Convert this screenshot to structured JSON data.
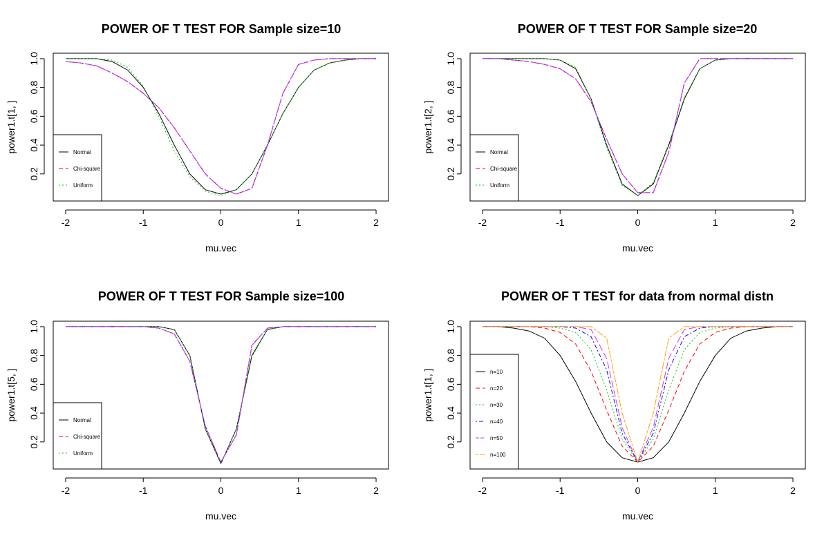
{
  "chart_data": [
    {
      "type": "line",
      "title": "POWER OF T TEST FOR Sample size=10",
      "xlabel": "mu.vec",
      "ylabel": "power1.t[1, ]",
      "xlim": [
        -2,
        2
      ],
      "ylim": [
        0.05,
        1.0
      ],
      "xticks": [
        "-2",
        "-1",
        "0",
        "1",
        "2"
      ],
      "yticks": [
        "0.2",
        "0.4",
        "0.6",
        "0.8",
        "1.0"
      ],
      "legend_position": "bottom-left",
      "x": [
        -2.0,
        -1.8,
        -1.6,
        -1.4,
        -1.2,
        -1.0,
        -0.8,
        -0.6,
        -0.4,
        -0.2,
        0.0,
        0.2,
        0.4,
        0.6,
        0.8,
        1.0,
        1.2,
        1.4,
        1.6,
        1.8,
        2.0
      ],
      "series": [
        {
          "name": "Normal",
          "color": "#000000",
          "dash": "solid",
          "values": [
            1.0,
            1.0,
            1.0,
            0.98,
            0.92,
            0.8,
            0.62,
            0.4,
            0.2,
            0.09,
            0.06,
            0.09,
            0.2,
            0.4,
            0.62,
            0.8,
            0.92,
            0.97,
            0.99,
            1.0,
            1.0
          ]
        },
        {
          "name": "Chi-square",
          "color": "#ff0000",
          "dash": "dashed",
          "values": [
            0.98,
            0.97,
            0.95,
            0.9,
            0.84,
            0.76,
            0.66,
            0.52,
            0.36,
            0.2,
            0.1,
            0.06,
            0.1,
            0.4,
            0.76,
            0.96,
            0.99,
            1.0,
            1.0,
            1.0,
            1.0
          ]
        },
        {
          "name": "Uniform",
          "color": "#00cc00",
          "dash": "dotted",
          "values": [
            1.0,
            1.0,
            1.0,
            0.99,
            0.94,
            0.81,
            0.6,
            0.36,
            0.18,
            0.08,
            0.05,
            0.09,
            0.2,
            0.4,
            0.62,
            0.8,
            0.92,
            0.97,
            0.99,
            1.0,
            1.0
          ]
        },
        {
          "color": "#0000ff",
          "dash": "dotdash",
          "values": [
            0.98,
            0.97,
            0.95,
            0.9,
            0.84,
            0.76,
            0.66,
            0.52,
            0.36,
            0.2,
            0.1,
            0.06,
            0.1,
            0.4,
            0.76,
            0.96,
            0.99,
            1.0,
            1.0,
            1.0,
            1.0
          ]
        },
        {
          "color": "#cc33ff",
          "dash": "longdash",
          "values": [
            0.98,
            0.97,
            0.95,
            0.9,
            0.84,
            0.76,
            0.66,
            0.52,
            0.36,
            0.2,
            0.1,
            0.06,
            0.1,
            0.4,
            0.76,
            0.96,
            0.99,
            1.0,
            1.0,
            1.0,
            1.0
          ]
        }
      ]
    },
    {
      "type": "line",
      "title": "POWER OF T TEST FOR Sample size=20",
      "xlabel": "mu.vec",
      "ylabel": "power1.t[2, ]",
      "xlim": [
        -2,
        2
      ],
      "ylim": [
        0.05,
        1.0
      ],
      "xticks": [
        "-2",
        "-1",
        "0",
        "1",
        "2"
      ],
      "yticks": [
        "0.2",
        "0.4",
        "0.6",
        "0.8",
        "1.0"
      ],
      "legend_position": "bottom-left",
      "x": [
        -2.0,
        -1.8,
        -1.6,
        -1.4,
        -1.2,
        -1.0,
        -0.8,
        -0.6,
        -0.4,
        -0.2,
        0.0,
        0.2,
        0.4,
        0.6,
        0.8,
        1.0,
        1.2,
        1.4,
        1.6,
        1.8,
        2.0
      ],
      "series": [
        {
          "name": "Normal",
          "color": "#000000",
          "dash": "solid",
          "values": [
            1.0,
            1.0,
            1.0,
            1.0,
            1.0,
            0.99,
            0.93,
            0.72,
            0.4,
            0.13,
            0.05,
            0.13,
            0.4,
            0.72,
            0.93,
            0.99,
            1.0,
            1.0,
            1.0,
            1.0,
            1.0
          ]
        },
        {
          "name": "Chi-square",
          "color": "#ff0000",
          "dash": "dashed",
          "values": [
            1.0,
            1.0,
            0.99,
            0.98,
            0.96,
            0.93,
            0.86,
            0.7,
            0.44,
            0.2,
            0.07,
            0.07,
            0.35,
            0.83,
            1.0,
            1.0,
            1.0,
            1.0,
            1.0,
            1.0,
            1.0
          ]
        },
        {
          "name": "Uniform",
          "color": "#00cc00",
          "dash": "dotted",
          "values": [
            1.0,
            1.0,
            1.0,
            1.0,
            1.0,
            0.99,
            0.94,
            0.72,
            0.38,
            0.12,
            0.05,
            0.14,
            0.41,
            0.73,
            0.93,
            0.99,
            1.0,
            1.0,
            1.0,
            1.0,
            1.0
          ]
        },
        {
          "color": "#0000ff",
          "dash": "dotdash",
          "values": [
            1.0,
            1.0,
            0.99,
            0.98,
            0.96,
            0.93,
            0.86,
            0.7,
            0.44,
            0.2,
            0.07,
            0.07,
            0.35,
            0.83,
            1.0,
            1.0,
            1.0,
            1.0,
            1.0,
            1.0,
            1.0
          ]
        },
        {
          "color": "#cc33ff",
          "dash": "longdash",
          "values": [
            1.0,
            1.0,
            0.99,
            0.98,
            0.96,
            0.93,
            0.86,
            0.7,
            0.44,
            0.2,
            0.07,
            0.07,
            0.35,
            0.83,
            1.0,
            1.0,
            1.0,
            1.0,
            1.0,
            1.0,
            1.0
          ]
        }
      ]
    },
    {
      "type": "line",
      "title": "POWER OF T TEST FOR Sample size=100",
      "xlabel": "mu.vec",
      "ylabel": "power1.t[5, ]",
      "xlim": [
        -2,
        2
      ],
      "ylim": [
        0.05,
        1.0
      ],
      "xticks": [
        "-2",
        "-1",
        "0",
        "1",
        "2"
      ],
      "yticks": [
        "0.2",
        "0.4",
        "0.6",
        "0.8",
        "1.0"
      ],
      "legend_position": "bottom-left",
      "x": [
        -2.0,
        -1.8,
        -1.6,
        -1.4,
        -1.2,
        -1.0,
        -0.8,
        -0.6,
        -0.4,
        -0.2,
        0.0,
        0.2,
        0.4,
        0.6,
        0.8,
        1.0,
        1.2,
        1.4,
        1.6,
        1.8,
        2.0
      ],
      "series": [
        {
          "name": "Normal",
          "color": "#000000",
          "dash": "solid",
          "values": [
            1.0,
            1.0,
            1.0,
            1.0,
            1.0,
            1.0,
            1.0,
            0.98,
            0.8,
            0.29,
            0.05,
            0.29,
            0.8,
            0.98,
            1.0,
            1.0,
            1.0,
            1.0,
            1.0,
            1.0,
            1.0
          ]
        },
        {
          "name": "Chi-square",
          "color": "#ff0000",
          "dash": "dashed",
          "values": [
            1.0,
            1.0,
            1.0,
            1.0,
            1.0,
            1.0,
            0.99,
            0.95,
            0.76,
            0.31,
            0.06,
            0.25,
            0.87,
            0.99,
            1.0,
            1.0,
            1.0,
            1.0,
            1.0,
            1.0,
            1.0
          ]
        },
        {
          "name": "Uniform",
          "color": "#00cc00",
          "dash": "dotted",
          "values": [
            1.0,
            1.0,
            1.0,
            1.0,
            1.0,
            1.0,
            1.0,
            0.98,
            0.8,
            0.29,
            0.05,
            0.29,
            0.79,
            0.98,
            1.0,
            1.0,
            1.0,
            1.0,
            1.0,
            1.0,
            1.0
          ]
        },
        {
          "color": "#0000ff",
          "dash": "dotdash",
          "values": [
            1.0,
            1.0,
            1.0,
            1.0,
            1.0,
            1.0,
            0.99,
            0.95,
            0.76,
            0.31,
            0.06,
            0.25,
            0.87,
            0.99,
            1.0,
            1.0,
            1.0,
            1.0,
            1.0,
            1.0,
            1.0
          ]
        },
        {
          "color": "#cc33ff",
          "dash": "longdash",
          "values": [
            1.0,
            1.0,
            1.0,
            1.0,
            1.0,
            1.0,
            0.99,
            0.95,
            0.76,
            0.31,
            0.06,
            0.25,
            0.87,
            0.99,
            1.0,
            1.0,
            1.0,
            1.0,
            1.0,
            1.0,
            1.0
          ]
        }
      ]
    },
    {
      "type": "line",
      "title": "POWER OF T TEST for data from normal distn",
      "xlabel": "mu.vec",
      "ylabel": "power1.t[1, ]",
      "xlim": [
        -2,
        2
      ],
      "ylim": [
        0.05,
        1.0
      ],
      "xticks": [
        "-2",
        "-1",
        "0",
        "1",
        "2"
      ],
      "yticks": [
        "0.2",
        "0.4",
        "0.6",
        "0.8",
        "1.0"
      ],
      "legend_position": "left",
      "x": [
        -2.0,
        -1.8,
        -1.6,
        -1.4,
        -1.2,
        -1.0,
        -0.8,
        -0.6,
        -0.4,
        -0.2,
        0.0,
        0.2,
        0.4,
        0.6,
        0.8,
        1.0,
        1.2,
        1.4,
        1.6,
        1.8,
        2.0
      ],
      "series": [
        {
          "name": "n=10",
          "color": "#000000",
          "dash": "solid",
          "values": [
            1.0,
            1.0,
            0.99,
            0.97,
            0.92,
            0.8,
            0.62,
            0.4,
            0.2,
            0.09,
            0.06,
            0.09,
            0.2,
            0.4,
            0.62,
            0.8,
            0.92,
            0.97,
            0.99,
            1.0,
            1.0
          ]
        },
        {
          "name": "n=20",
          "color": "#ff0000",
          "dash": "dashed",
          "values": [
            1.0,
            1.0,
            1.0,
            1.0,
            0.99,
            0.96,
            0.88,
            0.69,
            0.42,
            0.17,
            0.06,
            0.17,
            0.42,
            0.69,
            0.88,
            0.96,
            0.99,
            1.0,
            1.0,
            1.0,
            1.0
          ]
        },
        {
          "name": "n=30",
          "color": "#00cc00",
          "dash": "dotted",
          "values": [
            1.0,
            1.0,
            1.0,
            1.0,
            1.0,
            0.99,
            0.96,
            0.84,
            0.56,
            0.22,
            0.06,
            0.22,
            0.56,
            0.84,
            0.96,
            0.99,
            1.0,
            1.0,
            1.0,
            1.0,
            1.0
          ]
        },
        {
          "name": "n=40",
          "color": "#0000ff",
          "dash": "dotdash",
          "values": [
            1.0,
            1.0,
            1.0,
            1.0,
            1.0,
            1.0,
            0.99,
            0.93,
            0.7,
            0.26,
            0.06,
            0.26,
            0.7,
            0.93,
            0.99,
            1.0,
            1.0,
            1.0,
            1.0,
            1.0,
            1.0
          ]
        },
        {
          "name": "n=50",
          "color": "#cc33ff",
          "dash": "longdash",
          "values": [
            1.0,
            1.0,
            1.0,
            1.0,
            1.0,
            1.0,
            1.0,
            0.98,
            0.78,
            0.3,
            0.06,
            0.3,
            0.78,
            0.98,
            1.0,
            1.0,
            1.0,
            1.0,
            1.0,
            1.0,
            1.0
          ]
        },
        {
          "name": "n=100",
          "color": "#ffa500",
          "dash": "twodash",
          "values": [
            1.0,
            1.0,
            1.0,
            1.0,
            1.0,
            1.0,
            1.0,
            1.0,
            0.92,
            0.4,
            0.06,
            0.4,
            0.92,
            1.0,
            1.0,
            1.0,
            1.0,
            1.0,
            1.0,
            1.0,
            1.0
          ]
        }
      ]
    }
  ]
}
